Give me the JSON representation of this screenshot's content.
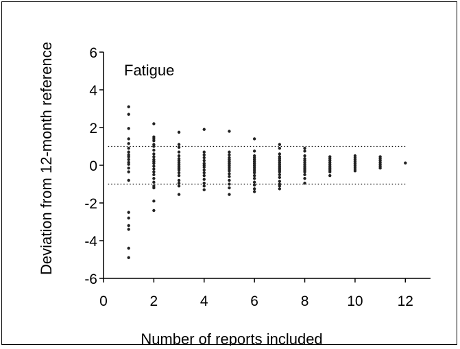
{
  "chart_data": {
    "type": "scatter",
    "title": "Fatigue",
    "xlabel": "Number of reports included",
    "ylabel": "Deviation from 12-month reference",
    "xlim": [
      0,
      13
    ],
    "ylim": [
      -6,
      6
    ],
    "x_ticks": [
      "0",
      "2",
      "4",
      "6",
      "8",
      "10",
      "12"
    ],
    "y_ticks": [
      "-6",
      "-4",
      "-2",
      "0",
      "2",
      "4",
      "6"
    ],
    "reference_lines": [
      1,
      -1
    ],
    "reference_line_x_range": [
      1,
      12
    ],
    "grid": false,
    "marker_color": "#222222",
    "points": [
      [
        1,
        3.1
      ],
      [
        1,
        2.7
      ],
      [
        1,
        1.95
      ],
      [
        1,
        1.4
      ],
      [
        1,
        1.15
      ],
      [
        1,
        0.9
      ],
      [
        1,
        0.7
      ],
      [
        1,
        0.55
      ],
      [
        1,
        0.45
      ],
      [
        1,
        0.3
      ],
      [
        1,
        0.15
      ],
      [
        1,
        0.05
      ],
      [
        1,
        -0.15
      ],
      [
        1,
        -0.35
      ],
      [
        1,
        -0.8
      ],
      [
        1,
        -2.5
      ],
      [
        1,
        -2.8
      ],
      [
        1,
        -3.2
      ],
      [
        1,
        -3.4
      ],
      [
        1,
        -4.4
      ],
      [
        1,
        -4.9
      ],
      [
        2,
        2.2
      ],
      [
        2,
        1.5
      ],
      [
        2,
        1.4
      ],
      [
        2,
        1.3
      ],
      [
        2,
        1.1
      ],
      [
        2,
        1.0
      ],
      [
        2,
        0.8
      ],
      [
        2,
        0.6
      ],
      [
        2,
        0.45
      ],
      [
        2,
        0.3
      ],
      [
        2,
        0.2
      ],
      [
        2,
        0.1
      ],
      [
        2,
        -0.05
      ],
      [
        2,
        -0.2
      ],
      [
        2,
        -0.35
      ],
      [
        2,
        -0.5
      ],
      [
        2,
        -0.7
      ],
      [
        2,
        -0.9
      ],
      [
        2,
        -1.1
      ],
      [
        2,
        -1.2
      ],
      [
        2,
        -1.9
      ],
      [
        2,
        -2.4
      ],
      [
        3,
        1.75
      ],
      [
        3,
        1.1
      ],
      [
        3,
        0.95
      ],
      [
        3,
        0.7
      ],
      [
        3,
        0.5
      ],
      [
        3,
        0.35
      ],
      [
        3,
        0.25
      ],
      [
        3,
        0.15
      ],
      [
        3,
        0.05
      ],
      [
        3,
        -0.05
      ],
      [
        3,
        -0.15
      ],
      [
        3,
        -0.25
      ],
      [
        3,
        -0.4
      ],
      [
        3,
        -0.55
      ],
      [
        3,
        -0.8
      ],
      [
        3,
        -0.95
      ],
      [
        3,
        -1.1
      ],
      [
        3,
        -1.55
      ],
      [
        4,
        1.9
      ],
      [
        4,
        0.7
      ],
      [
        4,
        0.55
      ],
      [
        4,
        0.4
      ],
      [
        4,
        0.25
      ],
      [
        4,
        0.1
      ],
      [
        4,
        0.0
      ],
      [
        4,
        -0.1
      ],
      [
        4,
        -0.25
      ],
      [
        4,
        -0.4
      ],
      [
        4,
        -0.55
      ],
      [
        4,
        -0.75
      ],
      [
        4,
        -0.95
      ],
      [
        4,
        -1.1
      ],
      [
        4,
        -1.3
      ],
      [
        5,
        1.8
      ],
      [
        5,
        0.7
      ],
      [
        5,
        0.55
      ],
      [
        5,
        0.4
      ],
      [
        5,
        0.3
      ],
      [
        5,
        0.2
      ],
      [
        5,
        0.1
      ],
      [
        5,
        0.0
      ],
      [
        5,
        -0.1
      ],
      [
        5,
        -0.2
      ],
      [
        5,
        -0.3
      ],
      [
        5,
        -0.45
      ],
      [
        5,
        -0.6
      ],
      [
        5,
        -0.8
      ],
      [
        5,
        -1.0
      ],
      [
        5,
        -1.2
      ],
      [
        5,
        -1.55
      ],
      [
        6,
        1.4
      ],
      [
        6,
        0.75
      ],
      [
        6,
        0.5
      ],
      [
        6,
        0.4
      ],
      [
        6,
        0.3
      ],
      [
        6,
        0.2
      ],
      [
        6,
        0.1
      ],
      [
        6,
        0.0
      ],
      [
        6,
        -0.1
      ],
      [
        6,
        -0.2
      ],
      [
        6,
        -0.3
      ],
      [
        6,
        -0.4
      ],
      [
        6,
        -0.55
      ],
      [
        6,
        -0.7
      ],
      [
        6,
        -0.9
      ],
      [
        6,
        -1.05
      ],
      [
        6,
        -1.25
      ],
      [
        6,
        -1.4
      ],
      [
        7,
        1.1
      ],
      [
        7,
        0.9
      ],
      [
        7,
        0.6
      ],
      [
        7,
        0.45
      ],
      [
        7,
        0.35
      ],
      [
        7,
        0.25
      ],
      [
        7,
        0.15
      ],
      [
        7,
        0.05
      ],
      [
        7,
        -0.05
      ],
      [
        7,
        -0.15
      ],
      [
        7,
        -0.25
      ],
      [
        7,
        -0.35
      ],
      [
        7,
        -0.5
      ],
      [
        7,
        -0.65
      ],
      [
        7,
        -0.85
      ],
      [
        7,
        -1.0
      ],
      [
        7,
        -1.1
      ],
      [
        7,
        -1.25
      ],
      [
        8,
        0.9
      ],
      [
        8,
        0.75
      ],
      [
        8,
        0.5
      ],
      [
        8,
        0.35
      ],
      [
        8,
        0.25
      ],
      [
        8,
        0.15
      ],
      [
        8,
        0.05
      ],
      [
        8,
        -0.05
      ],
      [
        8,
        -0.15
      ],
      [
        8,
        -0.25
      ],
      [
        8,
        -0.35
      ],
      [
        8,
        -0.5
      ],
      [
        8,
        -0.7
      ],
      [
        8,
        -0.95
      ],
      [
        9,
        0.45
      ],
      [
        9,
        0.35
      ],
      [
        9,
        0.25
      ],
      [
        9,
        0.15
      ],
      [
        9,
        0.05
      ],
      [
        9,
        -0.05
      ],
      [
        9,
        -0.15
      ],
      [
        9,
        -0.25
      ],
      [
        9,
        -0.35
      ],
      [
        9,
        -0.55
      ],
      [
        10,
        0.5
      ],
      [
        10,
        0.4
      ],
      [
        10,
        0.3
      ],
      [
        10,
        0.2
      ],
      [
        10,
        0.1
      ],
      [
        10,
        0.0
      ],
      [
        10,
        -0.1
      ],
      [
        10,
        -0.2
      ],
      [
        10,
        -0.3
      ],
      [
        11,
        0.45
      ],
      [
        11,
        0.35
      ],
      [
        11,
        0.25
      ],
      [
        11,
        0.15
      ],
      [
        11,
        0.05
      ],
      [
        11,
        -0.05
      ],
      [
        11,
        -0.15
      ],
      [
        12,
        0.12
      ]
    ]
  }
}
